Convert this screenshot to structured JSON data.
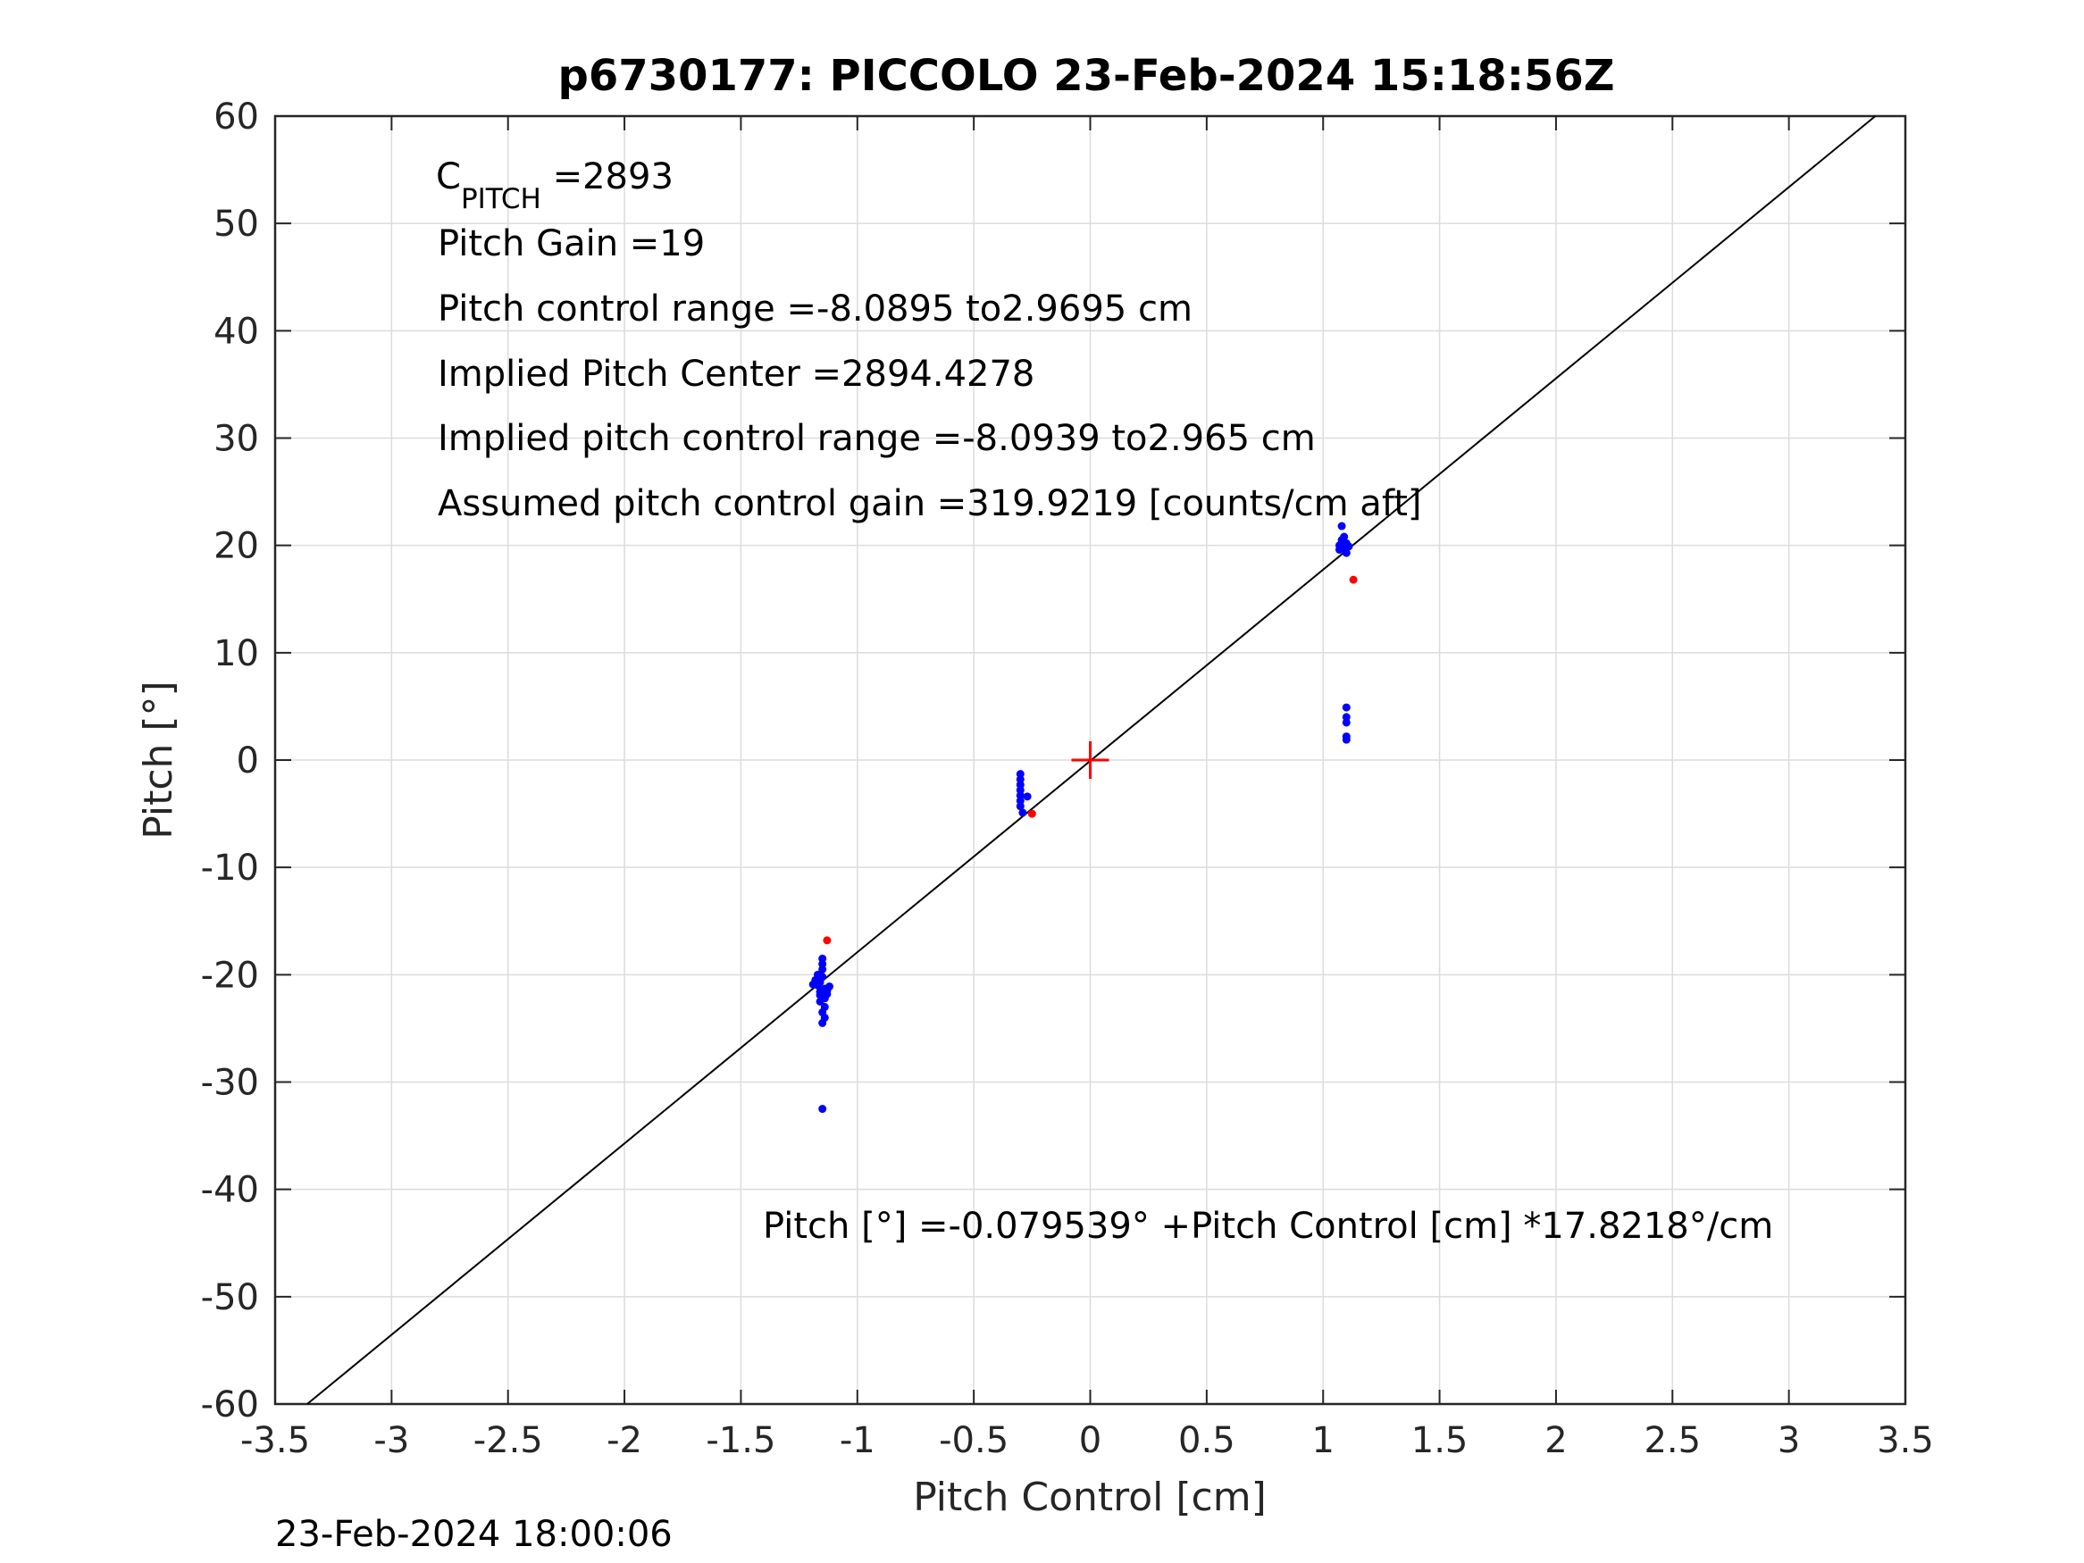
{
  "footer": {
    "timestamp": "23-Feb-2024 18:00:06"
  },
  "chart_data": {
    "type": "scatter",
    "title": "p6730177: PICCOLO 23-Feb-2024 15:18:56Z",
    "xlabel": "Pitch Control [cm]",
    "ylabel": "Pitch [°]",
    "xlim": [
      -3.5,
      3.5
    ],
    "ylim": [
      -60,
      60
    ],
    "grid": true,
    "x_ticks": [
      -3.5,
      -3,
      -2.5,
      -2,
      -1.5,
      -1,
      -0.5,
      0,
      0.5,
      1,
      1.5,
      2,
      2.5,
      3,
      3.5
    ],
    "x_tick_labels": [
      "-3.5",
      "-3",
      "-2.5",
      "-2",
      "-1.5",
      "-1",
      "-0.5",
      "0",
      "0.5",
      "1",
      "1.5",
      "2",
      "2.5",
      "3",
      "3.5"
    ],
    "y_ticks": [
      -60,
      -50,
      -40,
      -30,
      -20,
      -10,
      0,
      10,
      20,
      30,
      40,
      50,
      60
    ],
    "y_tick_labels": [
      "-60",
      "-50",
      "-40",
      "-30",
      "-20",
      "-10",
      "0",
      "10",
      "20",
      "30",
      "40",
      "50",
      "60"
    ],
    "annotations": {
      "cpitch_base": "C",
      "cpitch_sub": "PITCH",
      "cpitch_value": " =2893",
      "lines": [
        "Pitch Gain =19",
        "Pitch control range =-8.0895 to2.9695 cm",
        "Implied Pitch Center =2894.4278",
        "Implied pitch control range =-8.0939 to2.965 cm",
        "Assumed pitch control gain =319.9219 [counts/cm aft]"
      ],
      "fit_equation": "Pitch [°] =-0.079539° +Pitch Control [cm] *17.8218°/cm"
    },
    "fit_line": {
      "intercept": -0.079539,
      "slope": 17.8218,
      "color": "#000000"
    },
    "center_marker": {
      "x": 0,
      "y": 0,
      "color": "#ff0000",
      "shape": "plus"
    },
    "series": [
      {
        "color": "#0000ff",
        "points": [
          [
            -1.18,
            -20.5
          ],
          [
            -1.17,
            -21.0
          ],
          [
            -1.16,
            -21.6
          ],
          [
            -1.15,
            -20.2
          ],
          [
            -1.14,
            -21.3
          ],
          [
            -1.13,
            -21.8
          ],
          [
            -1.12,
            -21.1
          ],
          [
            -1.19,
            -20.9
          ],
          [
            -1.15,
            -22.0
          ],
          [
            -1.16,
            -22.5
          ],
          [
            -1.14,
            -23.0
          ],
          [
            -1.15,
            -23.5
          ],
          [
            -1.14,
            -24.0
          ],
          [
            -1.15,
            -24.5
          ],
          [
            -1.15,
            -19.5
          ],
          [
            -1.15,
            -19.0
          ],
          [
            -1.15,
            -18.5
          ],
          [
            -1.17,
            -20.0
          ],
          [
            -1.13,
            -21.5
          ],
          [
            -1.16,
            -20.7
          ],
          [
            -1.14,
            -22.2
          ],
          [
            -1.16,
            -21.9
          ],
          [
            -1.15,
            -32.5
          ],
          [
            -0.3,
            -1.3
          ],
          [
            -0.3,
            -1.8
          ],
          [
            -0.3,
            -2.3
          ],
          [
            -0.3,
            -2.8
          ],
          [
            -0.3,
            -3.3
          ],
          [
            -0.3,
            -3.8
          ],
          [
            -0.3,
            -4.3
          ],
          [
            -0.29,
            -4.9
          ],
          [
            -0.27,
            -3.4
          ],
          [
            1.07,
            20.0
          ],
          [
            1.08,
            20.5
          ],
          [
            1.09,
            19.8
          ],
          [
            1.1,
            20.2
          ],
          [
            1.08,
            21.8
          ],
          [
            1.1,
            19.3
          ],
          [
            1.09,
            20.8
          ],
          [
            1.11,
            19.9
          ],
          [
            1.07,
            19.6
          ],
          [
            1.1,
            4.9
          ],
          [
            1.1,
            4.0
          ],
          [
            1.1,
            3.5
          ],
          [
            1.1,
            2.2
          ],
          [
            1.1,
            1.9
          ]
        ]
      },
      {
        "color": "#ff0000",
        "points": [
          [
            -1.13,
            -16.8
          ],
          [
            -0.25,
            -5.0
          ],
          [
            1.13,
            16.8
          ]
        ]
      }
    ]
  }
}
